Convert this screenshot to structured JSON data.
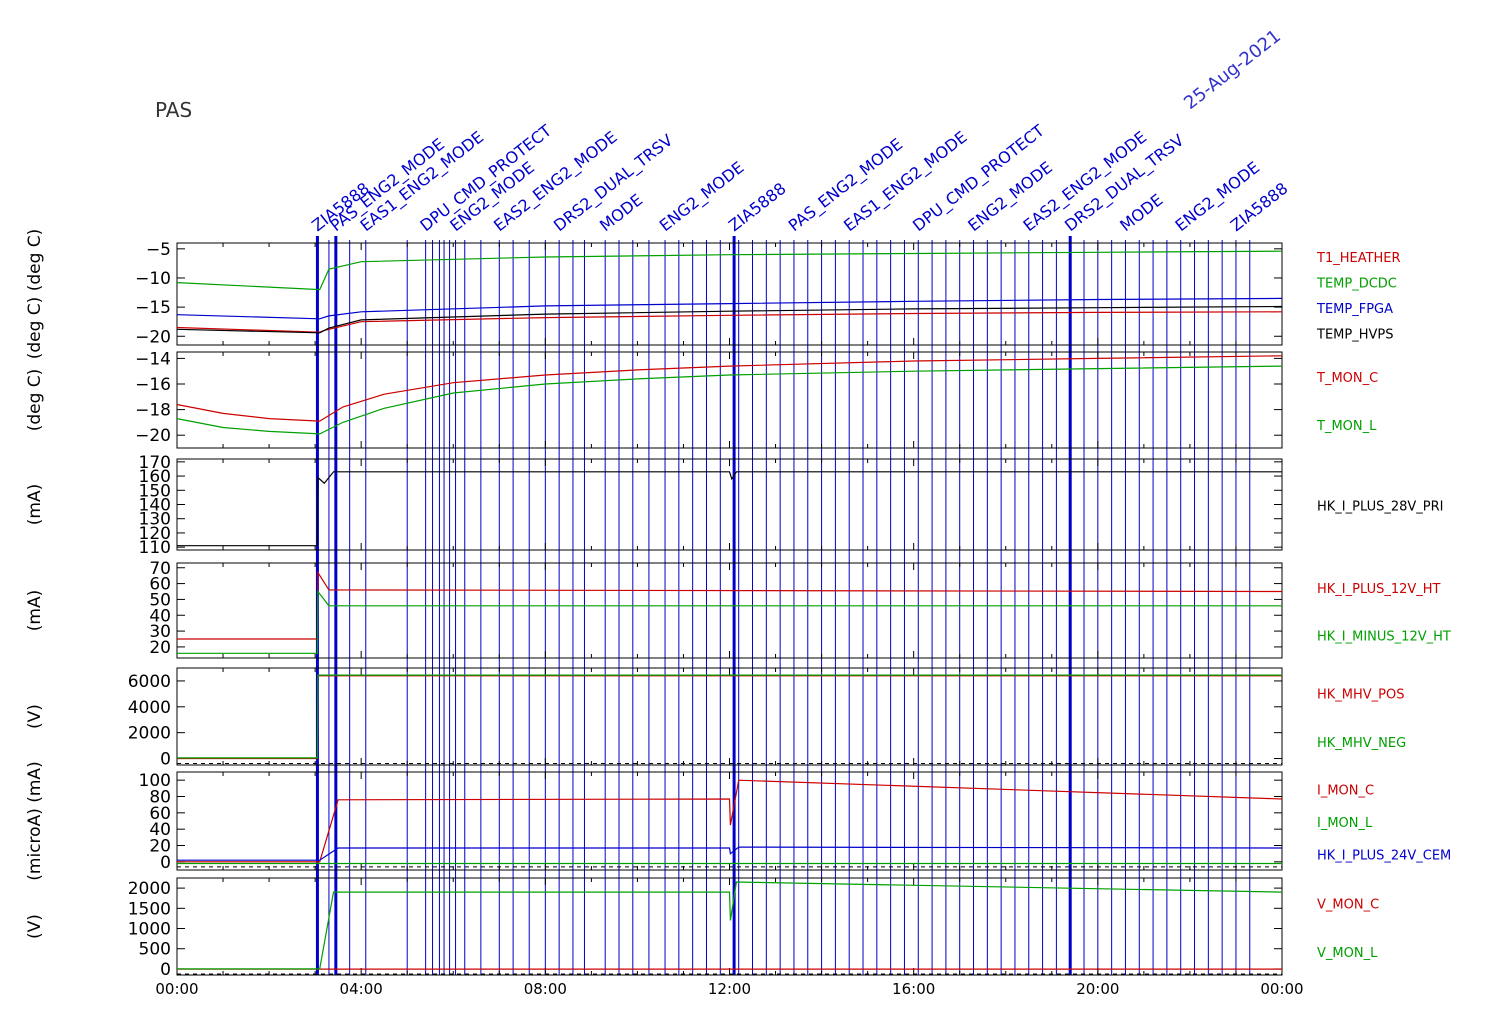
{
  "title": "PAS",
  "date_label": "25-Aug-2021",
  "colors": {
    "red": "#cc0000",
    "green": "#00a000",
    "blue": "#0000cc",
    "black": "#000000"
  },
  "x_ticks": [
    "00:00",
    "04:00",
    "08:00",
    "12:00",
    "16:00",
    "20:00",
    "00:00"
  ],
  "x_range_hours": [
    0,
    24
  ],
  "chart_data": [
    {
      "type": "line",
      "ylabel": "(deg C)  (deg C)",
      "ylim": [
        -21.5,
        -4
      ],
      "yticks": [
        -5,
        -10,
        -15,
        -20
      ],
      "series": [
        {
          "name": "T1_HEATHER",
          "color": "#cc0000",
          "x": [
            0,
            3.1,
            3.2,
            4,
            8,
            12,
            16,
            20,
            24
          ],
          "values": [
            -18.5,
            -19.3,
            -19.0,
            -17.5,
            -16.8,
            -16.4,
            -16.1,
            -15.9,
            -15.8
          ]
        },
        {
          "name": "TEMP_DCDC",
          "color": "#00a000",
          "x": [
            0,
            3.1,
            3.3,
            4,
            8,
            12,
            16,
            20,
            24
          ],
          "values": [
            -10.8,
            -12.0,
            -8.5,
            -7.2,
            -6.4,
            -6.0,
            -5.8,
            -5.6,
            -5.4
          ]
        },
        {
          "name": "TEMP_FPGA",
          "color": "#0000cc",
          "x": [
            0,
            3.1,
            3.3,
            4,
            8,
            12,
            16,
            20,
            24
          ],
          "values": [
            -16.3,
            -17.0,
            -16.5,
            -15.8,
            -14.8,
            -14.4,
            -14.0,
            -13.7,
            -13.5
          ]
        },
        {
          "name": "TEMP_HVPS",
          "color": "#000000",
          "x": [
            0,
            3.1,
            3.3,
            4,
            8,
            12,
            16,
            20,
            24
          ],
          "values": [
            -18.8,
            -19.4,
            -18.6,
            -17.2,
            -16.2,
            -15.7,
            -15.3,
            -15.1,
            -14.9
          ]
        }
      ]
    },
    {
      "type": "line",
      "ylabel": "(deg C)",
      "ylim": [
        -21,
        -13.5
      ],
      "yticks": [
        -14,
        -16,
        -18,
        -20
      ],
      "series": [
        {
          "name": "T_MON_C",
          "color": "#cc0000",
          "x": [
            0,
            1,
            2,
            3.1,
            3.6,
            4.5,
            6,
            8,
            10,
            12,
            16,
            20,
            24
          ],
          "values": [
            -17.6,
            -18.3,
            -18.7,
            -18.9,
            -17.8,
            -16.8,
            -15.9,
            -15.3,
            -14.9,
            -14.6,
            -14.2,
            -14.0,
            -13.8
          ]
        },
        {
          "name": "T_MON_L",
          "color": "#00a000",
          "x": [
            0,
            1,
            2,
            3.1,
            3.6,
            4.5,
            6,
            8,
            10,
            12,
            16,
            20,
            24
          ],
          "values": [
            -18.7,
            -19.4,
            -19.7,
            -19.9,
            -19.0,
            -17.9,
            -16.7,
            -16.0,
            -15.6,
            -15.3,
            -15.0,
            -14.8,
            -14.6
          ]
        }
      ]
    },
    {
      "type": "line",
      "ylabel": "(mA)",
      "ylim": [
        108,
        172
      ],
      "yticks": [
        110,
        120,
        130,
        140,
        150,
        160,
        170
      ],
      "series": [
        {
          "name": "HK_I_PLUS_28V_PRI",
          "color": "#000000",
          "x": [
            0,
            3.05,
            3.06,
            3.2,
            3.4,
            3.5,
            12.0,
            12.05,
            12.15,
            24
          ],
          "values": [
            111,
            111,
            159,
            155,
            163,
            163,
            163,
            158,
            163,
            163
          ]
        }
      ]
    },
    {
      "type": "line",
      "ylabel": "(mA)",
      "ylim": [
        13,
        73
      ],
      "yticks": [
        20,
        30,
        40,
        50,
        60,
        70
      ],
      "series": [
        {
          "name": "HK_I_PLUS_12V_HT",
          "color": "#cc0000",
          "x": [
            0,
            3.05,
            3.06,
            3.3,
            24
          ],
          "values": [
            25,
            25,
            67,
            56,
            55
          ]
        },
        {
          "name": "HK_I_MINUS_12V_HT",
          "color": "#00a000",
          "x": [
            0,
            3.05,
            3.06,
            3.3,
            24
          ],
          "values": [
            16,
            16,
            55,
            46,
            46
          ]
        }
      ]
    },
    {
      "type": "line",
      "ylabel": "(V)",
      "ylim": [
        -500,
        7000
      ],
      "yticks": [
        0,
        2000,
        4000,
        6000
      ],
      "series": [
        {
          "name": "HK_MHV_POS",
          "color": "#cc0000",
          "x": [
            0,
            3.05,
            3.06,
            24
          ],
          "values": [
            0,
            0,
            6400,
            6400
          ]
        },
        {
          "name": "HK_MHV_NEG",
          "color": "#00a000",
          "x": [
            0,
            3.05,
            3.06,
            24
          ],
          "values": [
            50,
            50,
            6450,
            6450
          ]
        }
      ]
    },
    {
      "type": "line",
      "ylabel": "(microA) (mA)",
      "ylim": [
        -10,
        110
      ],
      "yticks": [
        0,
        20,
        40,
        60,
        80,
        100
      ],
      "series": [
        {
          "name": "I_MON_C",
          "color": "#cc0000",
          "x": [
            0,
            3.1,
            3.5,
            12.0,
            12.02,
            12.2,
            24
          ],
          "values": [
            0,
            0,
            76,
            77,
            45,
            100,
            77
          ]
        },
        {
          "name": "I_MON_L",
          "color": "#00a000",
          "x": [
            0,
            24
          ],
          "values": [
            -2,
            -2
          ]
        },
        {
          "name": "HK_I_PLUS_24V_CEM",
          "color": "#0000cc",
          "x": [
            0,
            3.1,
            3.5,
            12.0,
            12.02,
            12.2,
            24
          ],
          "values": [
            2,
            2,
            17,
            17,
            10,
            18,
            17
          ]
        }
      ]
    },
    {
      "type": "line",
      "ylabel": "(V)",
      "ylim": [
        -150,
        2250
      ],
      "yticks": [
        0,
        500,
        1000,
        1500,
        2000
      ],
      "series": [
        {
          "name": "V_MON_C",
          "color": "#cc0000",
          "x": [
            0,
            24
          ],
          "values": [
            -5,
            -5
          ]
        },
        {
          "name": "V_MON_L",
          "color": "#00a000",
          "x": [
            0,
            3.1,
            3.4,
            12.0,
            12.02,
            12.15,
            24
          ],
          "values": [
            0,
            0,
            1900,
            1900,
            1200,
            2150,
            1900
          ]
        }
      ]
    }
  ],
  "events": {
    "color": "#0000cc",
    "labels": [
      "ZIA5888",
      "PAS_ENG2_MODE",
      "EAS1_ENG2_MODE",
      "DPU_CMD_PROTECT",
      "ENG2_MODE",
      "EAS2_ENG2_MODE",
      "DRS2_DUAL_TRSV",
      "MODE",
      "ENG2_MODE"
    ],
    "thick_hours": [
      3.05,
      3.45,
      12.1,
      19.4
    ],
    "thin_hours": [
      3.3,
      3.75,
      4.1,
      5.0,
      5.4,
      5.55,
      5.7,
      5.8,
      5.92,
      6.05,
      6.25,
      6.6,
      7.0,
      7.3,
      7.65,
      8.0,
      8.3,
      8.6,
      8.85,
      9.3,
      9.6,
      9.9,
      10.25,
      10.6,
      10.9,
      11.2,
      11.5,
      11.8,
      12.2,
      12.5,
      12.8,
      13.1,
      13.4,
      13.7,
      14.0,
      14.3,
      14.6,
      14.9,
      15.2,
      15.5,
      15.8,
      16.1,
      16.4,
      16.7,
      17.0,
      17.3,
      17.6,
      17.9,
      18.2,
      18.5,
      18.8,
      19.1,
      19.7,
      20.0,
      20.3,
      20.6,
      20.9,
      21.2,
      21.5,
      21.8,
      22.1,
      22.4,
      22.7,
      23.0,
      23.3
    ]
  }
}
